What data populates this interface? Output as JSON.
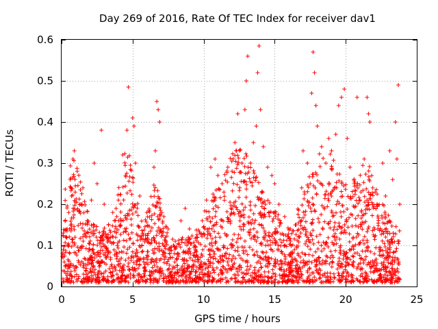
{
  "chart_data": {
    "type": "scatter",
    "title": "Day 269 of 2016, Rate Of TEC Index for receiver dav1",
    "xlabel": "GPS time / hours",
    "ylabel": "ROTI / TECUs",
    "xlim": [
      0,
      25
    ],
    "ylim": [
      0,
      0.6
    ],
    "xticks": [
      0,
      5,
      10,
      15,
      20,
      25
    ],
    "yticks": [
      0,
      0.1,
      0.2,
      0.3,
      0.4,
      0.5,
      0.6
    ],
    "xtick_labels": [
      "0",
      "5",
      "10",
      "15",
      "20",
      "25"
    ],
    "ytick_labels": [
      "0",
      "0.1",
      "0.2",
      "0.3",
      "0.4",
      "0.5",
      "0.6"
    ],
    "grid": true,
    "marker": "+",
    "color": "#ff0000",
    "series": [
      {
        "name": "dav1",
        "points": [
          [
            0.1,
            0.07
          ],
          [
            0.3,
            0.12
          ],
          [
            0.5,
            0.18
          ],
          [
            0.6,
            0.26
          ],
          [
            0.7,
            0.22
          ],
          [
            0.8,
            0.31
          ],
          [
            0.9,
            0.33
          ],
          [
            1.1,
            0.28
          ],
          [
            1.3,
            0.2
          ],
          [
            1.5,
            0.24
          ],
          [
            1.8,
            0.16
          ],
          [
            2.1,
            0.21
          ],
          [
            2.3,
            0.3
          ],
          [
            2.5,
            0.25
          ],
          [
            2.8,
            0.38
          ],
          [
            3.0,
            0.2
          ],
          [
            3.3,
            0.15
          ],
          [
            3.6,
            0.18
          ],
          [
            4.0,
            0.21
          ],
          [
            4.3,
            0.32
          ],
          [
            4.5,
            0.27
          ],
          [
            4.6,
            0.38
          ],
          [
            4.7,
            0.485
          ],
          [
            5.0,
            0.41
          ],
          [
            5.1,
            0.39
          ],
          [
            5.2,
            0.3
          ],
          [
            5.5,
            0.22
          ],
          [
            6.0,
            0.18
          ],
          [
            6.5,
            0.29
          ],
          [
            6.6,
            0.33
          ],
          [
            6.7,
            0.45
          ],
          [
            6.8,
            0.43
          ],
          [
            6.9,
            0.4
          ],
          [
            7.2,
            0.17
          ],
          [
            7.5,
            0.14
          ],
          [
            8.0,
            0.11
          ],
          [
            8.4,
            0.16
          ],
          [
            8.7,
            0.19
          ],
          [
            9.0,
            0.14
          ],
          [
            9.5,
            0.12
          ],
          [
            9.9,
            0.16
          ],
          [
            10.2,
            0.21
          ],
          [
            10.5,
            0.29
          ],
          [
            10.8,
            0.31
          ],
          [
            11.0,
            0.27
          ],
          [
            11.3,
            0.25
          ],
          [
            11.7,
            0.29
          ],
          [
            12.0,
            0.28
          ],
          [
            12.2,
            0.35
          ],
          [
            12.4,
            0.42
          ],
          [
            12.7,
            0.3
          ],
          [
            12.9,
            0.43
          ],
          [
            13.0,
            0.5
          ],
          [
            13.1,
            0.56
          ],
          [
            13.3,
            0.3
          ],
          [
            13.5,
            0.35
          ],
          [
            13.7,
            0.39
          ],
          [
            13.8,
            0.52
          ],
          [
            13.9,
            0.585
          ],
          [
            14.0,
            0.43
          ],
          [
            14.2,
            0.34
          ],
          [
            14.5,
            0.29
          ],
          [
            14.8,
            0.27
          ],
          [
            15.0,
            0.25
          ],
          [
            15.3,
            0.2
          ],
          [
            15.7,
            0.17
          ],
          [
            16.1,
            0.14
          ],
          [
            16.5,
            0.15
          ],
          [
            16.9,
            0.24
          ],
          [
            17.0,
            0.33
          ],
          [
            17.3,
            0.3
          ],
          [
            17.5,
            0.25
          ],
          [
            17.6,
            0.47
          ],
          [
            17.7,
            0.57
          ],
          [
            17.8,
            0.52
          ],
          [
            17.9,
            0.44
          ],
          [
            18.0,
            0.39
          ],
          [
            18.3,
            0.34
          ],
          [
            18.6,
            0.3
          ],
          [
            18.8,
            0.36
          ],
          [
            19.0,
            0.33
          ],
          [
            19.3,
            0.37
          ],
          [
            19.5,
            0.44
          ],
          [
            19.7,
            0.46
          ],
          [
            19.9,
            0.48
          ],
          [
            20.1,
            0.36
          ],
          [
            20.3,
            0.29
          ],
          [
            20.6,
            0.25
          ],
          [
            20.8,
            0.46
          ],
          [
            21.0,
            0.21
          ],
          [
            21.3,
            0.31
          ],
          [
            21.5,
            0.46
          ],
          [
            21.6,
            0.42
          ],
          [
            21.7,
            0.4
          ],
          [
            21.9,
            0.24
          ],
          [
            22.2,
            0.2
          ],
          [
            22.6,
            0.3
          ],
          [
            22.8,
            0.22
          ],
          [
            23.1,
            0.33
          ],
          [
            23.3,
            0.26
          ],
          [
            23.5,
            0.4
          ],
          [
            23.6,
            0.31
          ],
          [
            23.7,
            0.49
          ],
          [
            23.8,
            0.2
          ]
        ]
      }
    ]
  }
}
